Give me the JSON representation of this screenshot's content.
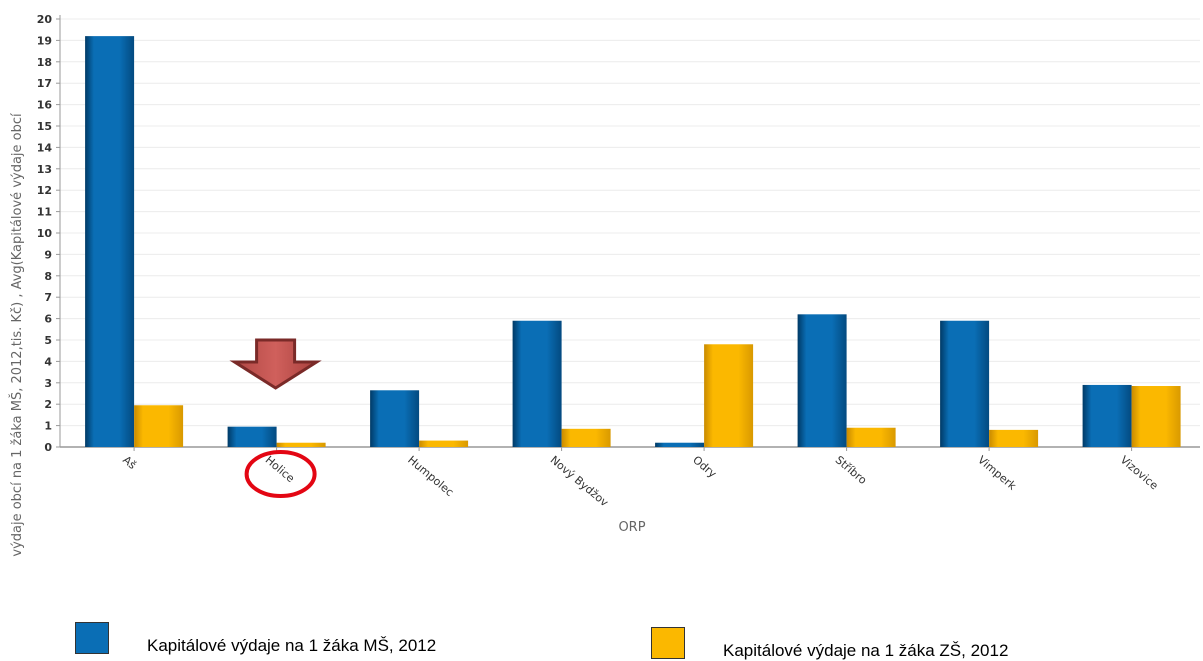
{
  "chart_data": {
    "type": "bar",
    "title": "",
    "xlabel": "ORP",
    "ylabel": "výdaje obcí na 1 žáka MŠ, 2012,tis. Kč) , Avg(Kapitálové výdaje obcí",
    "ylim": [
      0,
      20
    ],
    "yticks": [
      "0",
      "1",
      "2",
      "3",
      "4",
      "5",
      "6",
      "7",
      "8",
      "9",
      "10",
      "11",
      "12",
      "13",
      "14",
      "15",
      "16",
      "17",
      "18",
      "19",
      "20"
    ],
    "grid": true,
    "legend_position": "bottom",
    "categories": [
      "Aš",
      "Holice",
      "Humpolec",
      "Nový Bydžov",
      "Odry",
      "Stříbro",
      "Vimperk",
      "Vizovice"
    ],
    "series": [
      {
        "name": "Kapitálové výdaje na 1 žáka MŠ, 2012",
        "color": "#0a6eb5",
        "values": [
          19.2,
          0.95,
          2.65,
          5.9,
          0.2,
          6.2,
          5.9,
          2.9
        ]
      },
      {
        "name": "Kapitálové výdaje na 1 žáka ZŠ, 2012",
        "color": "#fbb800",
        "values": [
          1.95,
          0.2,
          0.3,
          0.85,
          4.8,
          0.9,
          0.8,
          2.85
        ]
      }
    ],
    "annotations": [
      {
        "type": "arrow-down",
        "target": "Holice",
        "color": "#c0504d"
      },
      {
        "type": "circle",
        "target": "Holice",
        "color": "#e30613"
      }
    ]
  }
}
